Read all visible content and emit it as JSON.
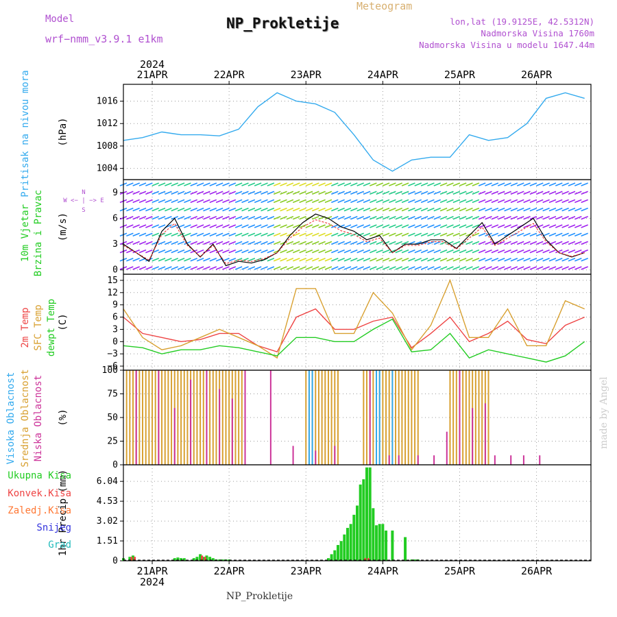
{
  "header": {
    "model_label": "Model",
    "model_name": "wrf−nmm_v3.9.1  e1km",
    "title": "NP_Prokletije",
    "subtitle": "Meteogram",
    "lonlat": "lon,lat (19.9125E, 42.5312N)",
    "altitude": "Nadmorska Visina 1760m",
    "model_altitude": "Nadmorska Visina u modelu 1647.44m"
  },
  "footer": {
    "station": "NP_Prokletije",
    "credit": "made by Angel"
  },
  "colors": {
    "pressure": "#33aaee",
    "temp2m": "#ee4444",
    "sfc": "#d8a030",
    "dewpt": "#22cc22",
    "high_cloud": "#33aaee",
    "mid_cloud": "#d8a030",
    "low_cloud": "#cc3399",
    "total_precip": "#22cc22",
    "conv_precip": "#ee4444",
    "frozen": "#ff7733",
    "snow": "#3333dd",
    "graupel": "#22bbbb"
  },
  "chart_data": [
    {
      "id": "pressure",
      "type": "line",
      "ylabel": "(hPa)",
      "side_label": "Pritisak na nivou mora",
      "ylim": [
        1002,
        1019
      ],
      "yticks": [
        "1016",
        "1012",
        "1008",
        "1004"
      ],
      "x_ticks_top": [
        "21APR",
        "22APR",
        "23APR",
        "24APR",
        "25APR",
        "26APR"
      ],
      "year_top": "2024",
      "x_hours": [
        0,
        6,
        12,
        18,
        24,
        30,
        36,
        42,
        48,
        54,
        60,
        66,
        72,
        78,
        84,
        90,
        96,
        102,
        108,
        114,
        120,
        126,
        132,
        138,
        144
      ],
      "series": [
        {
          "values": [
            1009,
            1009.5,
            1010.5,
            1010,
            1010,
            1009.8,
            1011,
            1015,
            1017.5,
            1016,
            1015.5,
            1014,
            1010,
            1005.5,
            1003.5,
            1005.5,
            1006,
            1006,
            1010,
            1009,
            1009.5,
            1012,
            1016.5,
            1017.5,
            1016.5
          ]
        }
      ]
    },
    {
      "id": "wind",
      "type": "line",
      "ylabel": "(m/s)",
      "side_label": [
        "10m Vjetar",
        "Brzina i Pravac"
      ],
      "ylim": [
        -0.5,
        10.5
      ],
      "yticks": [
        "9",
        "6",
        "3",
        "0"
      ],
      "x_hours": [
        0,
        4,
        8,
        12,
        16,
        20,
        24,
        28,
        32,
        36,
        40,
        44,
        48,
        52,
        56,
        60,
        64,
        68,
        72,
        76,
        80,
        84,
        88,
        92,
        96,
        100,
        104,
        108,
        112,
        116,
        120,
        124,
        128,
        132,
        136,
        140,
        144
      ],
      "series": [
        {
          "values": [
            3,
            2,
            1,
            4.5,
            6,
            3,
            1.5,
            3,
            0.5,
            1,
            0.8,
            1.2,
            2,
            4,
            5.5,
            6.5,
            6,
            5,
            4.5,
            3.5,
            4,
            2,
            3,
            3,
            3.5,
            3.5,
            2.5,
            4,
            5.5,
            3,
            4,
            5,
            6,
            3.5,
            2,
            1.5,
            2
          ]
        }
      ]
    },
    {
      "id": "temperature",
      "type": "line",
      "ylabel": "(C)",
      "side_labels": [
        "2m Temp",
        "SFC Temp",
        "dewpt Temp"
      ],
      "ylim": [
        -7,
        16.5
      ],
      "yticks": [
        "15",
        "12",
        "9",
        "6",
        "3",
        "0",
        "−3",
        "−6"
      ],
      "x_hours": [
        0,
        6,
        12,
        18,
        24,
        30,
        36,
        42,
        48,
        54,
        60,
        66,
        72,
        78,
        84,
        90,
        96,
        102,
        108,
        114,
        120,
        126,
        132,
        138,
        144
      ],
      "series": [
        {
          "name": "2m Temp",
          "values": [
            6,
            2,
            1,
            0,
            0.5,
            2,
            2,
            -1,
            -2.5,
            6,
            8,
            3,
            3,
            5,
            6,
            -1.5,
            2,
            6,
            0,
            2,
            5,
            0.5,
            -0.5,
            4,
            6
          ]
        },
        {
          "name": "SFC Temp",
          "values": [
            8,
            1,
            -2,
            -1,
            1,
            3,
            1,
            -1,
            -4,
            13,
            13,
            2,
            2,
            12,
            7,
            -2,
            4,
            15,
            1,
            1,
            8,
            -1,
            -1,
            10,
            8
          ]
        },
        {
          "name": "dewpt Temp",
          "values": [
            -1,
            -1.5,
            -3,
            -2,
            -2,
            -1,
            -1.5,
            -2.5,
            -3.5,
            1,
            1,
            0,
            0,
            3,
            5.5,
            -2.5,
            -2,
            2,
            -4,
            -2,
            -3,
            -4,
            -5,
            -3.5,
            0
          ]
        }
      ]
    },
    {
      "id": "clouds",
      "type": "bar",
      "ylabel": "(%)",
      "side_labels": [
        "Visoka Oblacnost",
        "Srednja Oblacnost",
        "Niska Oblacnost"
      ],
      "ylim": [
        0,
        100
      ],
      "yticks": [
        "100",
        "75",
        "50",
        "25",
        "0"
      ],
      "mid_cloud_hours": [
        1,
        2,
        3,
        4,
        5,
        6,
        7,
        8,
        9,
        10,
        11,
        12,
        13,
        14,
        15,
        16,
        17,
        18,
        19,
        20,
        21,
        22,
        23,
        24,
        25,
        26,
        27,
        28,
        29,
        30,
        31,
        32,
        33,
        34,
        35,
        36,
        37,
        57,
        58,
        59,
        60,
        61,
        62,
        63,
        64,
        65,
        66,
        67,
        75,
        76,
        77,
        78,
        79,
        80,
        81,
        82,
        83,
        84,
        85,
        86,
        87,
        88,
        89,
        90,
        91,
        92,
        102,
        103,
        104,
        105,
        106,
        107,
        108,
        109,
        110,
        111,
        112,
        113,
        114
      ],
      "low_cloud_hours": [
        4,
        11,
        16,
        21,
        26,
        30,
        34,
        38,
        46,
        53,
        60,
        66,
        77,
        83,
        86,
        92,
        97,
        101,
        105,
        109,
        113,
        116,
        121,
        125,
        130
      ],
      "high_cloud_hours": [
        58,
        59,
        79,
        80,
        84
      ]
    },
    {
      "id": "precip",
      "type": "bar",
      "ylabel": "1hr Precip (mm)",
      "side_labels": [
        "Ukupna Kisa",
        "Konvek.Kisa",
        "Zaledj.Kisa",
        "Snijeg",
        "Grad"
      ],
      "ylim": [
        0,
        7.3
      ],
      "yticks": [
        "6.04",
        "4.53",
        "3.02",
        "1.51",
        "0"
      ],
      "x_ticks_bottom": [
        "21APR",
        "22APR",
        "23APR",
        "24APR",
        "25APR",
        "26APR"
      ],
      "year_bottom": "2024",
      "x_hours": [
        0,
        2,
        3,
        16,
        17,
        18,
        19,
        22,
        23,
        24,
        25,
        26,
        27,
        28,
        29,
        30,
        31,
        32,
        33,
        64,
        65,
        66,
        67,
        68,
        69,
        70,
        71,
        72,
        73,
        74,
        75,
        76,
        77,
        78,
        79,
        80,
        81,
        82,
        84,
        88,
        90,
        91,
        92
      ],
      "values": [
        0.2,
        0.3,
        0.4,
        0.2,
        0.25,
        0.2,
        0.2,
        0.2,
        0.3,
        0.5,
        0.3,
        0.4,
        0.3,
        0.2,
        0.1,
        0.1,
        0.1,
        0.1,
        0.1,
        0.2,
        0.5,
        0.8,
        1.2,
        1.5,
        2.0,
        2.5,
        2.8,
        3.5,
        4.2,
        5.8,
        6.2,
        7.1,
        7.1,
        4.0,
        2.7,
        2.8,
        2.8,
        2.3,
        2.3,
        1.8,
        0.1,
        0.1,
        0.1
      ],
      "conv_hours": [
        2,
        3,
        24,
        25,
        75,
        76
      ],
      "conv_values": [
        0.3,
        0.3,
        0.4,
        0.3,
        0.2,
        0.2
      ]
    }
  ]
}
